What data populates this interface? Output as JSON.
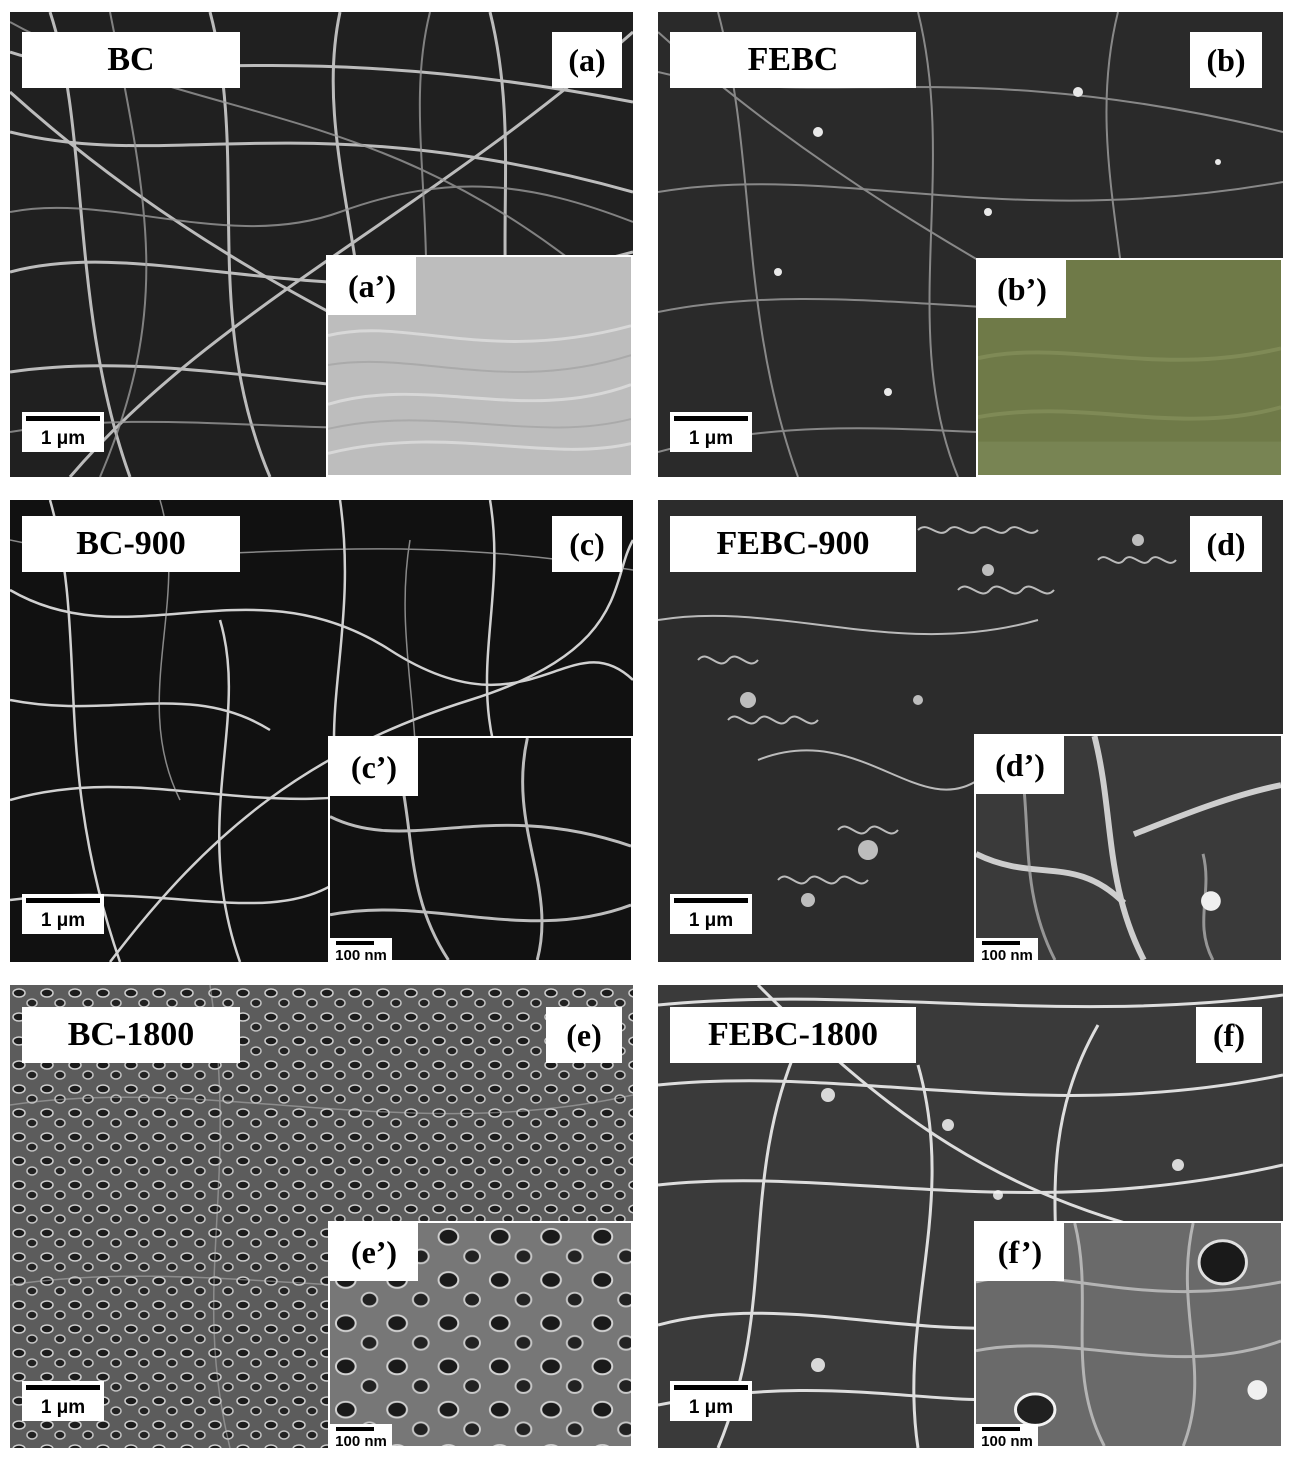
{
  "panels": [
    {
      "id": "a",
      "label": "BC",
      "letter": "(a)",
      "scale": "1 μm",
      "inset_letter": "(a’)",
      "inset_scale": ""
    },
    {
      "id": "b",
      "label": "FEBC",
      "letter": "(b)",
      "scale": "1 μm",
      "inset_letter": "(b’)",
      "inset_scale": ""
    },
    {
      "id": "c",
      "label": "BC-900",
      "letter": "(c)",
      "scale": "1 μm",
      "inset_letter": "(c’)",
      "inset_scale": "100 nm"
    },
    {
      "id": "d",
      "label": "FEBC-900",
      "letter": "(d)",
      "scale": "1 μm",
      "inset_letter": "(d’)",
      "inset_scale": "100 nm"
    },
    {
      "id": "e",
      "label": "BC-1800",
      "letter": "(e)",
      "scale": "1 μm",
      "inset_letter": "(e’)",
      "inset_scale": "100 nm"
    },
    {
      "id": "f",
      "label": "FEBC-1800",
      "letter": "(f)",
      "scale": "1 μm",
      "inset_letter": "(f’)",
      "inset_scale": "100 nm"
    }
  ],
  "colors": {
    "inset_b_tint": "#6f7a48",
    "inset_a_tone": "#bdbdbd"
  }
}
